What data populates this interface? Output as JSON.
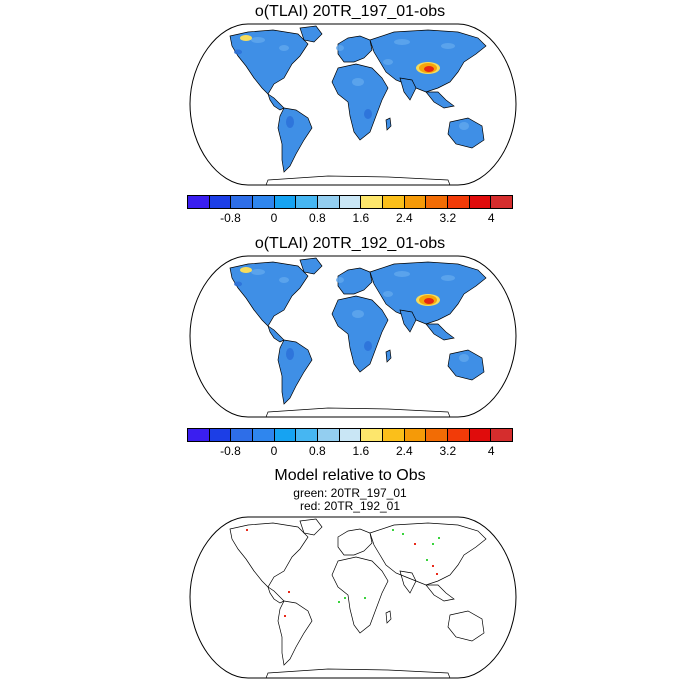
{
  "panels": [
    {
      "title": "o(TLAI) 20TR_197_01-obs"
    },
    {
      "title": "o(TLAI) 20TR_192_01-obs"
    }
  ],
  "colorbar": {
    "colors": [
      "#3a1ef0",
      "#1c3ee6",
      "#2e6ee8",
      "#2f86ee",
      "#16a3f2",
      "#46b6f2",
      "#93cef0",
      "#c9e6f5",
      "#fde66c",
      "#fbbf1a",
      "#f59a08",
      "#f26c05",
      "#f23b08",
      "#e00c0c",
      "#d52d2d"
    ],
    "tick_labels": [
      "-0.8",
      "0",
      "0.8",
      "1.6",
      "2.4",
      "3.2",
      "4"
    ]
  },
  "comparison": {
    "title": "Model relative to Obs",
    "legend_green": "green: 20TR_197_01",
    "legend_red": "red: 20TR_192_01"
  },
  "map_colors": {
    "land_base": "#3f8fe6",
    "land_light": "#62a8ee",
    "land_dark": "#2a6ed8",
    "hotspot_orange": "#f5a50a",
    "hotspot_red": "#e52613",
    "hotspot_yellow": "#f7dc5c",
    "green_marks": "#39d33c",
    "red_marks": "#e82a1a",
    "coastline": "#000000"
  }
}
